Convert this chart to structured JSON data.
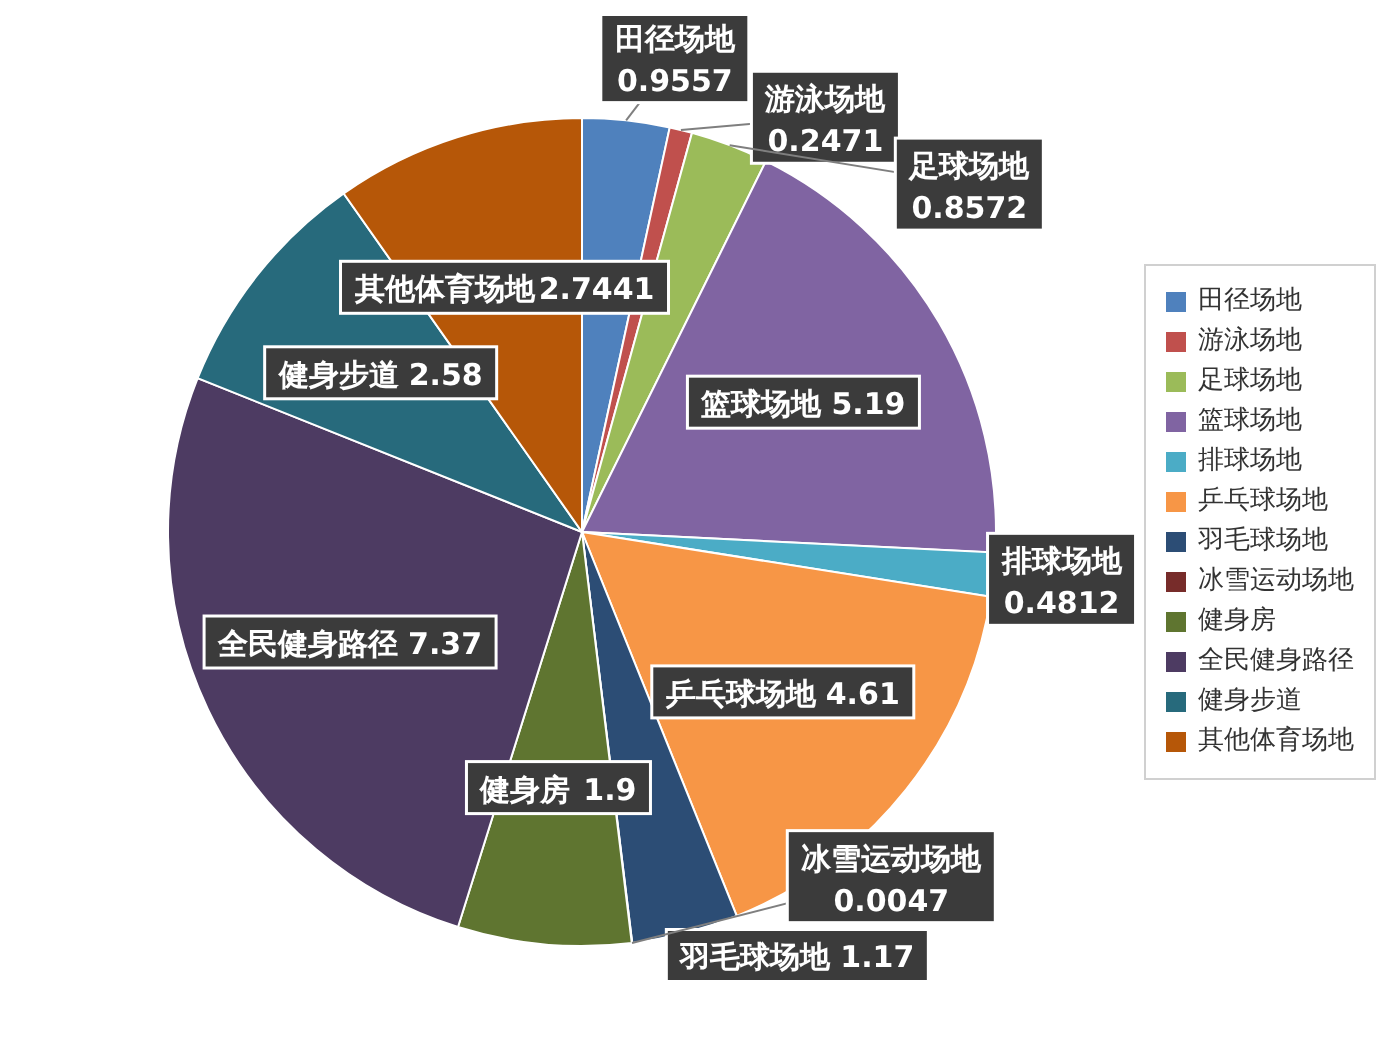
{
  "chart_data": {
    "type": "pie",
    "categories": [
      "田径场地",
      "游泳场地",
      "足球场地",
      "篮球场地",
      "排球场地",
      "乒乓球场地",
      "羽毛球场地",
      "冰雪运动场地",
      "健身房",
      "全民健身路径",
      "健身步道",
      "其他体育场地"
    ],
    "values": [
      0.9557,
      0.2471,
      0.8572,
      5.19,
      0.4812,
      4.61,
      1.17,
      0.0047,
      1.9,
      7.37,
      2.58,
      2.7441
    ],
    "colors": [
      "#4f81bd",
      "#c0504d",
      "#9bbb59",
      "#8064a2",
      "#4bacc6",
      "#f79646",
      "#2c4d75",
      "#772c2a",
      "#5f7530",
      "#4d3b62",
      "#276a7c",
      "#b65708"
    ],
    "data_labels": true,
    "legend": "right"
  }
}
